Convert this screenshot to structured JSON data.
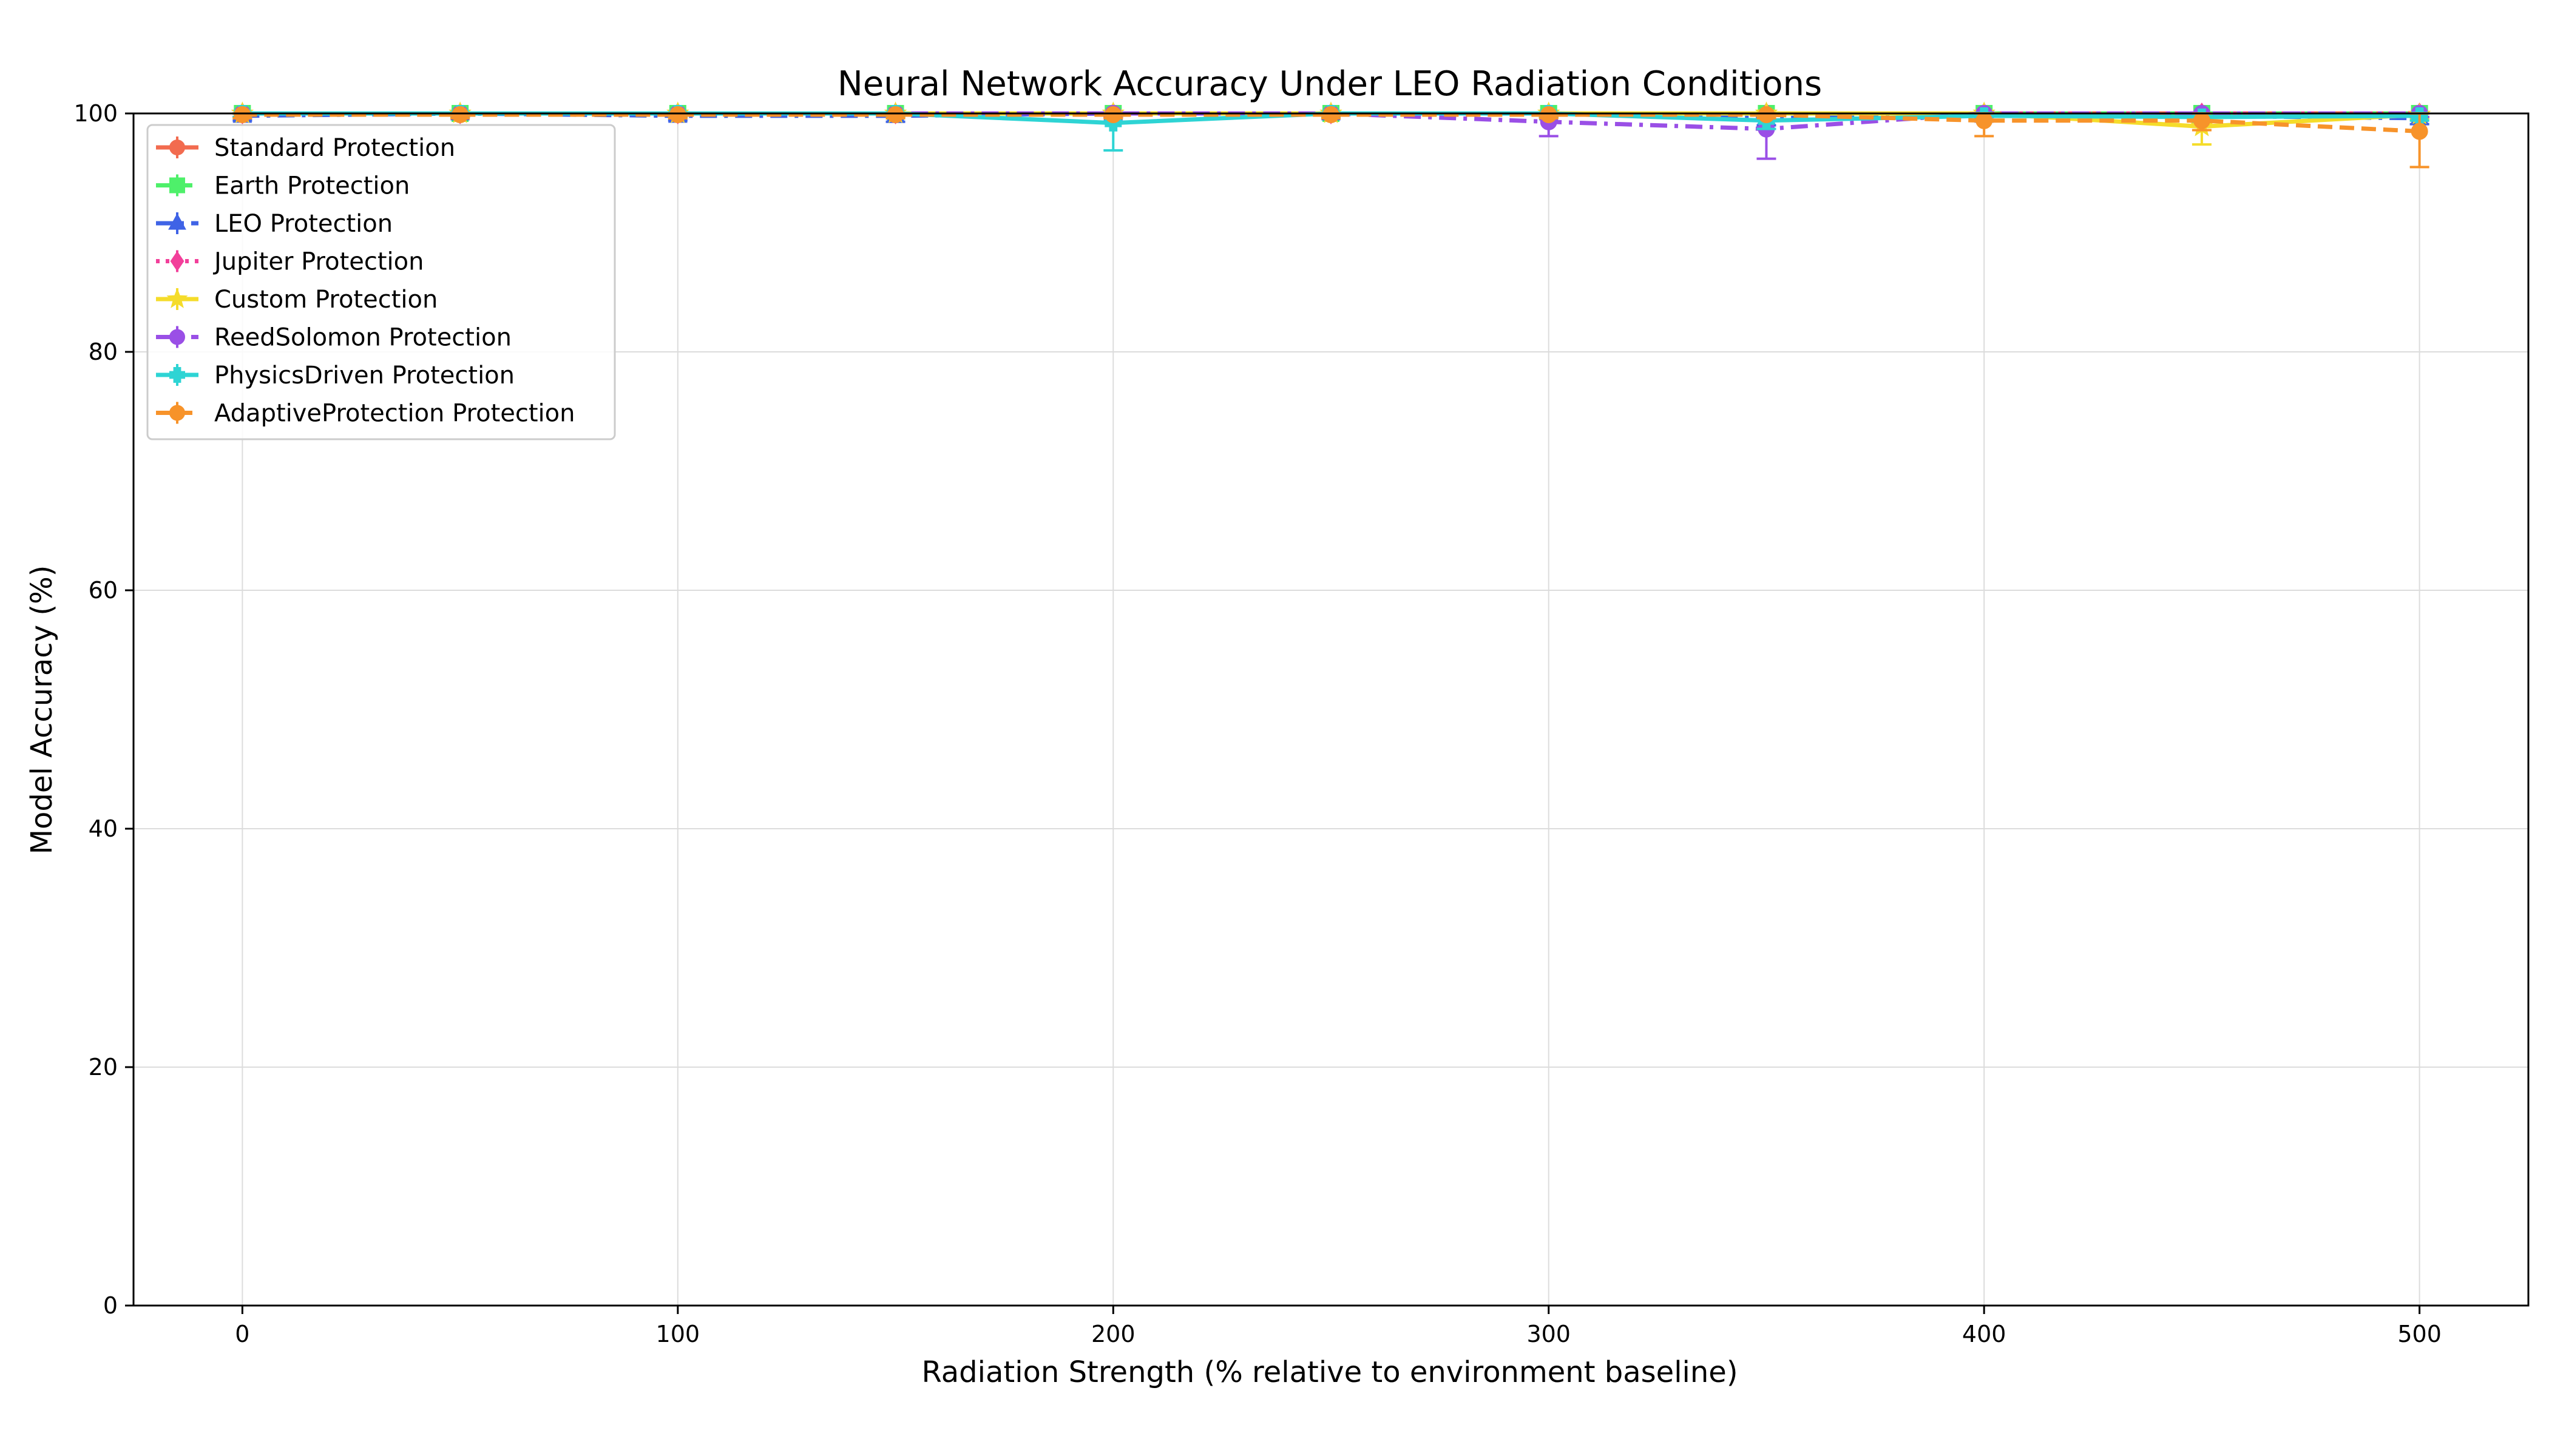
{
  "chart_data": {
    "type": "line",
    "title": "Neural Network Accuracy Under LEO Radiation Conditions",
    "xlabel": "Radiation Strength (% relative to environment baseline)",
    "ylabel": "Model Accuracy (%)",
    "xlim": [
      -25,
      525
    ],
    "ylim": [
      0,
      100
    ],
    "xticks": [
      0,
      100,
      200,
      300,
      400,
      500
    ],
    "yticks": [
      0,
      20,
      40,
      60,
      80,
      100
    ],
    "grid": true,
    "legend_position": "top-left",
    "x": [
      0,
      50,
      100,
      150,
      200,
      250,
      300,
      350,
      400,
      450,
      500
    ],
    "series": [
      {
        "name": "Standard Protection",
        "color": "#f26b4f",
        "dash": "solid",
        "marker": "circle",
        "values": [
          100,
          100,
          100,
          100,
          100,
          100,
          100,
          100,
          100,
          100,
          100
        ],
        "errors": [
          0.3,
          0.3,
          0.3,
          0.3,
          0.3,
          0.3,
          0.3,
          0.3,
          0.3,
          0.3,
          0.3
        ]
      },
      {
        "name": "Earth Protection",
        "color": "#4ef06a",
        "dash": "dashed",
        "marker": "square",
        "values": [
          100,
          100,
          100,
          100,
          100,
          100,
          100,
          100,
          100,
          100,
          100
        ],
        "errors": [
          0.3,
          0.3,
          0.3,
          0.3,
          0.3,
          0.3,
          0.3,
          0.3,
          0.3,
          0.3,
          0.3
        ]
      },
      {
        "name": "LEO Protection",
        "color": "#3f63e6",
        "dash": "dashdot",
        "marker": "triangle",
        "values": [
          99.8,
          100,
          99.8,
          99.8,
          100,
          100,
          100,
          99.6,
          99.8,
          99.8,
          99.6
        ],
        "errors": [
          0.4,
          0.3,
          0.4,
          0.5,
          0.3,
          0.3,
          0.3,
          0.6,
          0.4,
          0.4,
          0.5
        ]
      },
      {
        "name": "Jupiter Protection",
        "color": "#f23f9a",
        "dash": "dotted",
        "marker": "diamond",
        "values": [
          100,
          100,
          100,
          100,
          100,
          100,
          100,
          100,
          100,
          100,
          100
        ],
        "errors": [
          0.3,
          0.3,
          0.3,
          0.3,
          0.3,
          0.3,
          0.3,
          0.3,
          0.3,
          0.3,
          0.3
        ]
      },
      {
        "name": "Custom Protection",
        "color": "#f5dc2a",
        "dash": "solid",
        "marker": "star",
        "values": [
          100,
          100,
          100,
          100,
          100,
          100,
          100,
          100,
          100,
          98.9,
          99.9
        ],
        "errors": [
          0.3,
          0.3,
          0.3,
          0.3,
          0.3,
          0.3,
          0.3,
          0.3,
          0.3,
          1.5,
          0.4
        ]
      },
      {
        "name": "ReedSolomon Protection",
        "color": "#9a4fe6",
        "dash": "dashdot",
        "marker": "hexagon",
        "values": [
          100,
          100,
          100,
          100,
          100,
          100,
          99.3,
          98.7,
          100,
          100,
          100
        ],
        "errors": [
          0.3,
          0.3,
          0.3,
          0.3,
          0.3,
          0.3,
          1.2,
          2.5,
          0.3,
          0.3,
          0.3
        ]
      },
      {
        "name": "PhysicsDriven Protection",
        "color": "#2ed4d4",
        "dash": "solid",
        "marker": "plus",
        "values": [
          100,
          100,
          100,
          100,
          99.2,
          100,
          100,
          99.4,
          99.8,
          99.7,
          99.8
        ],
        "errors": [
          0.3,
          0.3,
          0.3,
          0.3,
          2.3,
          0.3,
          0.3,
          0.7,
          0.4,
          0.4,
          0.4
        ]
      },
      {
        "name": "AdaptiveProtection Protection",
        "color": "#f7932a",
        "dash": "dashed",
        "marker": "octagon",
        "values": [
          99.9,
          99.9,
          99.9,
          99.9,
          99.9,
          99.9,
          99.9,
          99.9,
          99.4,
          99.4,
          98.5
        ],
        "errors": [
          0.3,
          0.3,
          0.3,
          0.3,
          0.3,
          0.3,
          0.3,
          0.3,
          1.3,
          0.8,
          3.0
        ]
      }
    ]
  }
}
